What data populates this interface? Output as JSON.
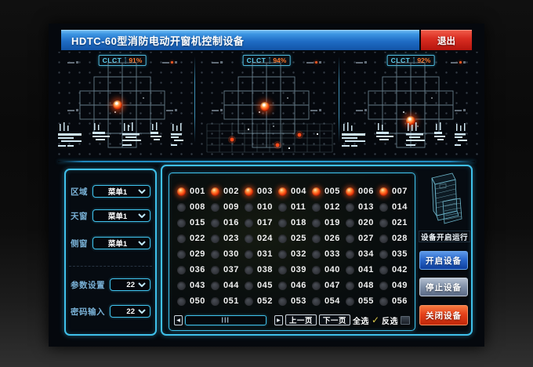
{
  "window": {
    "title": "HDTC-60型消防电动开窗机控制设备",
    "exit_label": "退出"
  },
  "radars": [
    {
      "label": "CLCT",
      "value": "91%"
    },
    {
      "label": "CLCT",
      "value": "94%"
    },
    {
      "label": "CLCT",
      "value": "92%"
    }
  ],
  "left_panel": {
    "fields": [
      {
        "label": "区域",
        "value": "菜单1"
      },
      {
        "label": "天窗",
        "value": "菜单1"
      },
      {
        "label": "侧窗",
        "value": "菜单1"
      },
      {
        "label": "参数设置",
        "value": "22"
      },
      {
        "label": "密码输入",
        "value": "22"
      }
    ]
  },
  "device_grid": {
    "ids": [
      "001",
      "002",
      "003",
      "004",
      "005",
      "006",
      "007",
      "008",
      "009",
      "010",
      "011",
      "012",
      "013",
      "014",
      "015",
      "016",
      "017",
      "018",
      "019",
      "020",
      "021",
      "022",
      "023",
      "024",
      "025",
      "026",
      "027",
      "028",
      "029",
      "030",
      "031",
      "032",
      "033",
      "034",
      "035",
      "036",
      "037",
      "038",
      "039",
      "040",
      "041",
      "042",
      "043",
      "044",
      "045",
      "046",
      "047",
      "048",
      "049",
      "050",
      "051",
      "052",
      "053",
      "054",
      "055",
      "056"
    ],
    "on_ids": [
      "001",
      "002",
      "003",
      "004",
      "005",
      "006",
      "007"
    ],
    "pager": {
      "prev_arrow": "◀",
      "next_arrow": "▶",
      "scroll_handle": "|||",
      "prev_page": "上一页",
      "next_page": "下一页",
      "select_all": "全选",
      "select_all_check": "✓",
      "invert": "反选"
    }
  },
  "right_panel": {
    "status": "设备开启运行",
    "buttons": [
      {
        "label": "开启设备"
      },
      {
        "label": "停止设备"
      },
      {
        "label": "关闭设备"
      }
    ]
  },
  "colors": {
    "accent": "#3fc0ea",
    "title-blue": "#2e86d9",
    "exit-red": "#d22b1f",
    "lamp-red": "#ff4a15",
    "value-orange": "#ff7a2e",
    "btn-blue": "#1d5fc0",
    "btn-gray": "#8b9ab2",
    "btn-red": "#e2421a",
    "check-yellow": "#d9c84b"
  }
}
